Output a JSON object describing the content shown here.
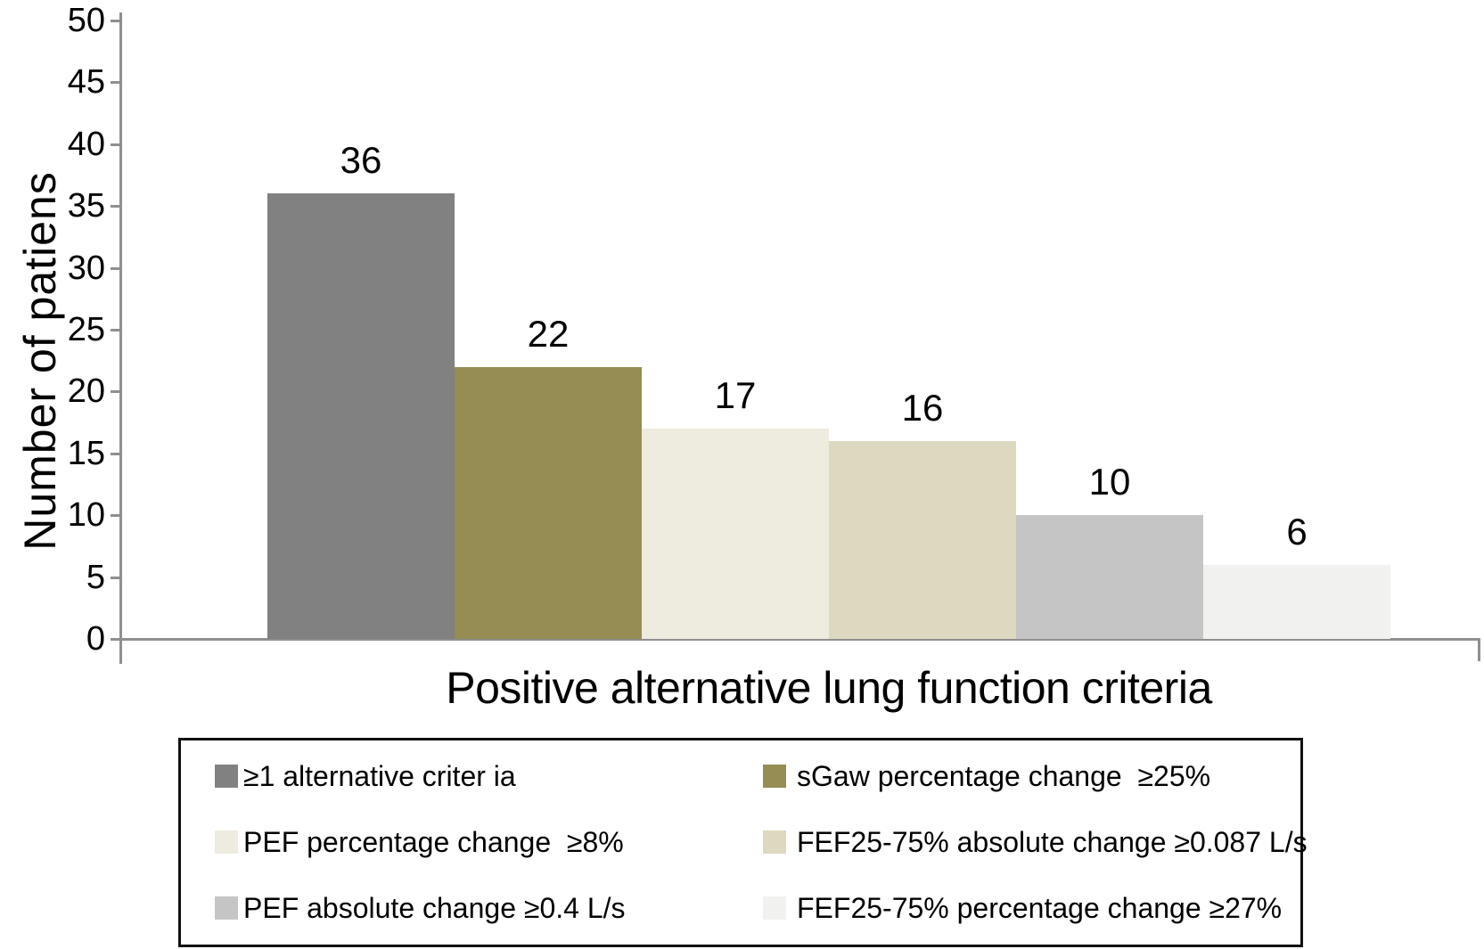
{
  "chart_data": {
    "type": "bar",
    "title": "",
    "xlabel": "Positive alternative lung function criteria",
    "ylabel": "Number of patiens",
    "ylim": [
      0,
      50
    ],
    "yticks": [
      0,
      5,
      10,
      15,
      20,
      25,
      30,
      35,
      40,
      45,
      50
    ],
    "grid": false,
    "legend_position": "bottom",
    "categories": [
      "≥1 alternative criter ia",
      "sGaw percentage change  ≥25%",
      "PEF percentage change  ≥8%",
      "FEF25-75% absolute change ≥0.087 L/s",
      "PEF absolute change ≥0.4 L/s",
      "FEF25-75% percentage change ≥27%"
    ],
    "values": [
      36,
      22,
      17,
      16,
      10,
      6
    ],
    "value_labels": [
      "36",
      "22",
      "17",
      "16",
      "10",
      "6"
    ],
    "bar_colors": [
      "#818181",
      "#958D54",
      "#EEEBDF",
      "#DDD9C1",
      "#C5C5C5",
      "#F1F1F0"
    ],
    "legend": {
      "columns": [
        [
          {
            "label": "≥1 alternative criter ia",
            "color": "#818181"
          },
          {
            "label": "PEF percentage change  ≥8%",
            "color": "#EEEBDF"
          },
          {
            "label": "PEF absolute change ≥0.4 L/s",
            "color": "#C5C5C5"
          }
        ],
        [
          {
            "label": "sGaw percentage change  ≥25%",
            "color": "#958D54"
          },
          {
            "label": "FEF25-75% absolute change ≥0.087 L/s",
            "color": "#DDD9C1"
          },
          {
            "label": "FEF25-75% percentage change ≥27%",
            "color": "#F1F1F0"
          }
        ]
      ]
    }
  },
  "colors": {
    "axis": "#8F8F8F",
    "text": "#000000",
    "background": "#FFFFFF",
    "legend_border": "#111111"
  }
}
